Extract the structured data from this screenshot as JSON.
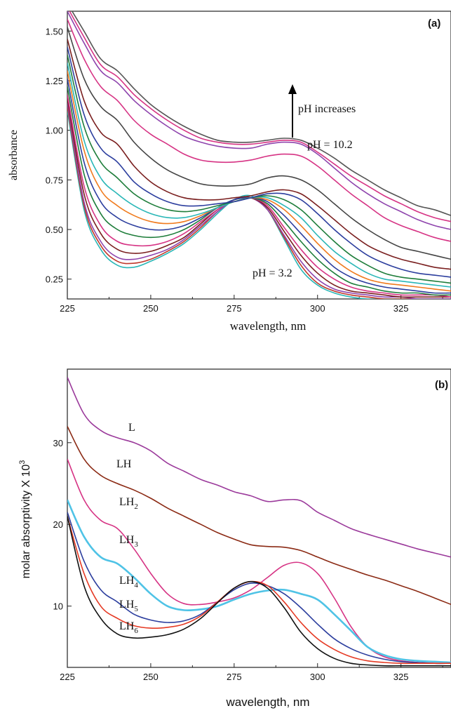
{
  "chart_data": [
    {
      "type": "line",
      "panel_label": "(a)",
      "xlabel": "wavelength, nm",
      "ylabel": "absorbance",
      "xlim": [
        225,
        340
      ],
      "ylim": [
        0.15,
        1.6
      ],
      "xticks": [
        225,
        250,
        275,
        300,
        325
      ],
      "xtick_labels": [
        "225",
        "250",
        "275",
        "300",
        "325"
      ],
      "yticks": [
        0.25,
        0.5,
        0.75,
        1.0,
        1.25,
        1.5
      ],
      "ytick_labels": [
        "0.25",
        "0.50",
        "0.75",
        "1.00",
        "1.25",
        "1.50"
      ],
      "annotations": {
        "arrow_text": "pH increases",
        "high_label": "pH = 10.2",
        "low_label": "pH = 3.2"
      },
      "x": [
        225,
        230,
        235,
        240,
        245,
        250,
        255,
        260,
        265,
        270,
        275,
        280,
        285,
        290,
        295,
        300,
        305,
        310,
        315,
        320,
        325,
        330,
        335,
        340
      ],
      "series": [
        {
          "color": "#2ab7b7",
          "values": [
            1.1,
            0.6,
            0.4,
            0.32,
            0.31,
            0.34,
            0.38,
            0.43,
            0.5,
            0.58,
            0.65,
            0.67,
            0.6,
            0.45,
            0.3,
            0.22,
            0.18,
            0.16,
            0.15,
            0.15,
            0.15,
            0.15,
            0.15,
            0.15
          ]
        },
        {
          "color": "#c0392b",
          "values": [
            1.12,
            0.62,
            0.42,
            0.34,
            0.33,
            0.35,
            0.39,
            0.44,
            0.51,
            0.59,
            0.65,
            0.66,
            0.6,
            0.46,
            0.32,
            0.23,
            0.19,
            0.17,
            0.16,
            0.15,
            0.15,
            0.15,
            0.15,
            0.15
          ]
        },
        {
          "color": "#8e44ad",
          "values": [
            1.14,
            0.64,
            0.44,
            0.36,
            0.35,
            0.37,
            0.4,
            0.45,
            0.52,
            0.59,
            0.65,
            0.66,
            0.6,
            0.47,
            0.34,
            0.25,
            0.2,
            0.18,
            0.17,
            0.16,
            0.16,
            0.15,
            0.15,
            0.15
          ]
        },
        {
          "color": "#7a1f1f",
          "values": [
            1.16,
            0.68,
            0.48,
            0.4,
            0.38,
            0.39,
            0.42,
            0.46,
            0.53,
            0.6,
            0.65,
            0.66,
            0.61,
            0.49,
            0.37,
            0.28,
            0.22,
            0.19,
            0.18,
            0.17,
            0.16,
            0.16,
            0.16,
            0.16
          ]
        },
        {
          "color": "#d63384",
          "values": [
            1.18,
            0.72,
            0.52,
            0.44,
            0.42,
            0.42,
            0.44,
            0.48,
            0.54,
            0.6,
            0.65,
            0.66,
            0.62,
            0.51,
            0.4,
            0.31,
            0.25,
            0.21,
            0.19,
            0.18,
            0.17,
            0.17,
            0.17,
            0.16
          ]
        },
        {
          "color": "#1e7d3a",
          "values": [
            1.22,
            0.78,
            0.58,
            0.5,
            0.47,
            0.46,
            0.47,
            0.5,
            0.55,
            0.61,
            0.65,
            0.66,
            0.63,
            0.54,
            0.44,
            0.35,
            0.28,
            0.23,
            0.21,
            0.19,
            0.18,
            0.18,
            0.17,
            0.17
          ]
        },
        {
          "color": "#2c3e9e",
          "values": [
            1.26,
            0.84,
            0.64,
            0.56,
            0.52,
            0.5,
            0.5,
            0.52,
            0.56,
            0.61,
            0.65,
            0.66,
            0.64,
            0.57,
            0.48,
            0.39,
            0.31,
            0.26,
            0.23,
            0.21,
            0.2,
            0.19,
            0.18,
            0.18
          ]
        },
        {
          "color": "#f07b1e",
          "values": [
            1.3,
            0.9,
            0.7,
            0.62,
            0.57,
            0.54,
            0.53,
            0.54,
            0.57,
            0.61,
            0.64,
            0.66,
            0.65,
            0.6,
            0.52,
            0.43,
            0.35,
            0.29,
            0.25,
            0.23,
            0.22,
            0.21,
            0.2,
            0.19
          ]
        },
        {
          "color": "#2ab7b7",
          "values": [
            1.34,
            0.95,
            0.76,
            0.68,
            0.62,
            0.58,
            0.56,
            0.56,
            0.58,
            0.61,
            0.64,
            0.66,
            0.66,
            0.62,
            0.56,
            0.47,
            0.39,
            0.33,
            0.28,
            0.25,
            0.24,
            0.23,
            0.22,
            0.21
          ]
        },
        {
          "color": "#1e7d3a",
          "values": [
            1.38,
            1.02,
            0.84,
            0.76,
            0.68,
            0.63,
            0.6,
            0.59,
            0.6,
            0.62,
            0.64,
            0.66,
            0.67,
            0.65,
            0.6,
            0.52,
            0.44,
            0.37,
            0.32,
            0.28,
            0.26,
            0.25,
            0.24,
            0.23
          ]
        },
        {
          "color": "#2c3e9e",
          "values": [
            1.42,
            1.08,
            0.91,
            0.84,
            0.74,
            0.68,
            0.64,
            0.62,
            0.62,
            0.63,
            0.64,
            0.66,
            0.68,
            0.68,
            0.65,
            0.58,
            0.5,
            0.43,
            0.37,
            0.33,
            0.3,
            0.28,
            0.27,
            0.26
          ]
        },
        {
          "color": "#7a1f1f",
          "values": [
            1.46,
            1.15,
            0.99,
            0.93,
            0.82,
            0.74,
            0.69,
            0.66,
            0.65,
            0.65,
            0.66,
            0.67,
            0.69,
            0.7,
            0.68,
            0.62,
            0.55,
            0.48,
            0.42,
            0.38,
            0.35,
            0.33,
            0.31,
            0.3
          ]
        },
        {
          "color": "#444444",
          "values": [
            1.52,
            1.26,
            1.12,
            1.05,
            0.94,
            0.86,
            0.8,
            0.76,
            0.73,
            0.72,
            0.72,
            0.73,
            0.76,
            0.77,
            0.75,
            0.7,
            0.63,
            0.56,
            0.5,
            0.45,
            0.41,
            0.39,
            0.37,
            0.35
          ]
        },
        {
          "color": "#d63384",
          "values": [
            1.56,
            1.36,
            1.22,
            1.15,
            1.05,
            0.98,
            0.93,
            0.88,
            0.85,
            0.84,
            0.84,
            0.85,
            0.87,
            0.88,
            0.87,
            0.82,
            0.75,
            0.68,
            0.62,
            0.56,
            0.52,
            0.49,
            0.46,
            0.44
          ]
        },
        {
          "color": "#8e44ad",
          "values": [
            1.6,
            1.44,
            1.3,
            1.24,
            1.15,
            1.08,
            1.02,
            0.97,
            0.94,
            0.92,
            0.91,
            0.91,
            0.93,
            0.94,
            0.93,
            0.88,
            0.81,
            0.74,
            0.68,
            0.63,
            0.59,
            0.55,
            0.52,
            0.5
          ]
        },
        {
          "color": "#d63384",
          "values": [
            1.62,
            1.47,
            1.33,
            1.27,
            1.18,
            1.11,
            1.05,
            1.0,
            0.96,
            0.94,
            0.93,
            0.93,
            0.94,
            0.95,
            0.94,
            0.89,
            0.83,
            0.77,
            0.72,
            0.67,
            0.63,
            0.59,
            0.56,
            0.54
          ]
        },
        {
          "color": "#555555",
          "values": [
            1.64,
            1.5,
            1.36,
            1.3,
            1.21,
            1.13,
            1.07,
            1.02,
            0.98,
            0.95,
            0.94,
            0.94,
            0.95,
            0.96,
            0.95,
            0.91,
            0.86,
            0.8,
            0.75,
            0.7,
            0.66,
            0.62,
            0.6,
            0.57
          ]
        }
      ]
    },
    {
      "type": "line",
      "panel_label": "(b)",
      "xlabel": "wavelength, nm",
      "ylabel": "molar absorptivity X 10",
      "ylabel_superscript": "3",
      "xlim": [
        225,
        340
      ],
      "ylim": [
        2.5,
        39
      ],
      "xticks": [
        225,
        250,
        275,
        300,
        325
      ],
      "xtick_labels": [
        "225",
        "250",
        "275",
        "300",
        "325"
      ],
      "yticks": [
        10,
        20,
        30
      ],
      "ytick_labels": [
        "10",
        "20",
        "30"
      ],
      "x": [
        225,
        230,
        235,
        240,
        245,
        250,
        255,
        260,
        265,
        270,
        275,
        280,
        285,
        290,
        295,
        300,
        305,
        310,
        315,
        320,
        325,
        330,
        335,
        340
      ],
      "series": [
        {
          "name": "L",
          "label_main": "L",
          "label_sub": "",
          "color": "#9b3a9b",
          "values": [
            38.0,
            33.5,
            31.5,
            30.6,
            30.0,
            29.0,
            27.5,
            26.5,
            25.5,
            24.8,
            24.0,
            23.5,
            22.8,
            23.0,
            22.9,
            21.5,
            20.5,
            19.5,
            18.8,
            18.2,
            17.6,
            17.0,
            16.5,
            16.0
          ]
        },
        {
          "name": "LH",
          "label_main": "LH",
          "label_sub": "",
          "color": "#8b2a14",
          "values": [
            32.0,
            28.0,
            26.0,
            25.0,
            24.2,
            23.2,
            22.0,
            21.0,
            20.0,
            19.0,
            18.2,
            17.5,
            17.3,
            17.2,
            16.8,
            16.0,
            15.2,
            14.5,
            13.8,
            13.2,
            12.5,
            11.8,
            11.0,
            10.2
          ]
        },
        {
          "name": "LH2",
          "label_main": "LH",
          "label_sub": "2",
          "color": "#d63384",
          "values": [
            28.0,
            23.0,
            20.5,
            19.5,
            17.0,
            14.0,
            11.5,
            10.3,
            10.2,
            10.5,
            11.0,
            12.0,
            13.5,
            15.0,
            15.3,
            14.0,
            11.0,
            7.5,
            5.0,
            3.8,
            3.3,
            3.1,
            3.0,
            3.0
          ]
        },
        {
          "name": "LH3",
          "label_main": "LH",
          "label_sub": "3",
          "color": "#4fc3e6",
          "values": [
            23.0,
            18.5,
            16.0,
            15.2,
            13.5,
            11.5,
            10.0,
            9.5,
            9.6,
            10.0,
            10.8,
            11.5,
            11.9,
            12.0,
            11.5,
            10.8,
            9.0,
            7.0,
            5.0,
            4.0,
            3.5,
            3.3,
            3.2,
            3.1
          ]
        },
        {
          "name": "LH4",
          "label_main": "LH",
          "label_sub": "4",
          "color": "#2c3e9e",
          "values": [
            21.5,
            15.5,
            12.0,
            10.5,
            9.0,
            8.3,
            8.0,
            8.2,
            9.0,
            10.5,
            12.0,
            12.8,
            12.5,
            11.5,
            9.8,
            7.8,
            6.0,
            4.8,
            4.0,
            3.5,
            3.2,
            3.1,
            3.0,
            3.0
          ]
        },
        {
          "name": "LH5",
          "label_main": "LH",
          "label_sub": "5",
          "color": "#e53923",
          "values": [
            21.0,
            14.0,
            10.0,
            8.5,
            7.6,
            7.3,
            7.4,
            7.8,
            8.8,
            10.5,
            12.2,
            13.0,
            12.5,
            10.5,
            8.0,
            6.0,
            4.7,
            3.8,
            3.3,
            3.1,
            3.0,
            3.0,
            3.0,
            3.0
          ]
        },
        {
          "name": "LH6",
          "label_main": "LH",
          "label_sub": "6",
          "color": "#111111",
          "values": [
            21.0,
            12.5,
            8.5,
            6.6,
            6.1,
            6.2,
            6.5,
            7.2,
            8.5,
            10.4,
            12.2,
            13.0,
            12.2,
            9.8,
            6.8,
            4.8,
            3.6,
            3.0,
            2.8,
            2.7,
            2.7,
            2.7,
            2.7,
            2.7
          ]
        }
      ]
    }
  ]
}
